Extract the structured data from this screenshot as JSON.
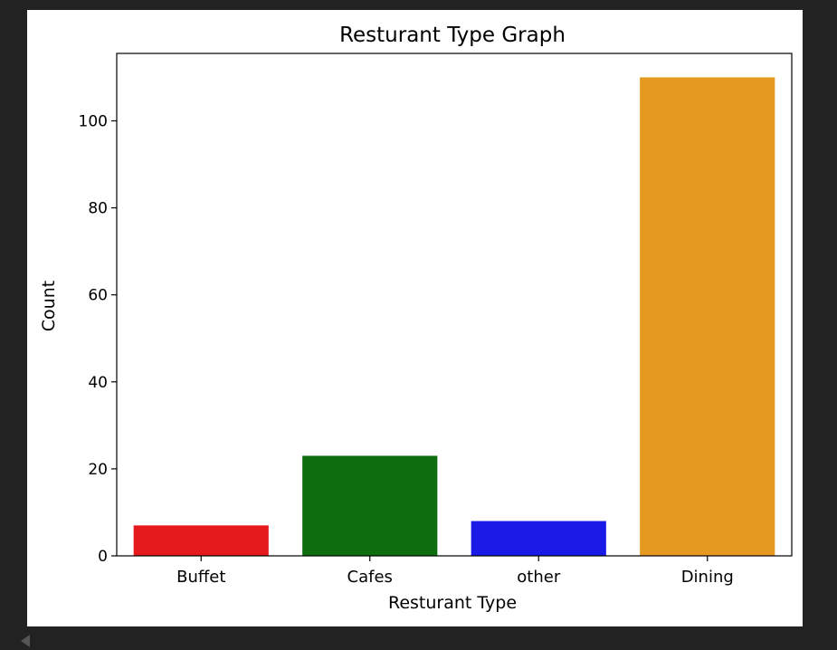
{
  "chart_data": {
    "type": "bar",
    "title": "Resturant Type Graph",
    "xlabel": "Resturant Type",
    "ylabel": "Count",
    "categories": [
      "Buffet",
      "Cafes",
      "other",
      "Dining"
    ],
    "values": [
      7,
      23,
      8,
      110
    ],
    "colors": [
      "#e41a1c",
      "#0d6e0d",
      "#1a1ae6",
      "#e59a1f"
    ],
    "ylim": [
      0,
      115.5
    ],
    "yticks": [
      0,
      20,
      40,
      60,
      80,
      100
    ],
    "grid": false,
    "legend": "none"
  }
}
